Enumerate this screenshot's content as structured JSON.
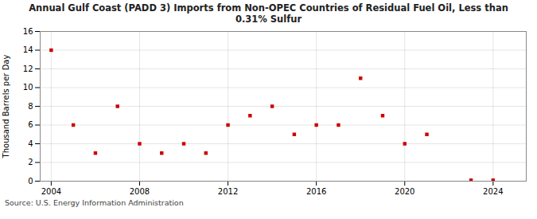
{
  "chart_data": {
    "type": "scatter",
    "title": "Annual Gulf Coast (PADD 3) Imports from Non-OPEC Countries of Residual Fuel Oil, Less than\n0.31% Sulfur",
    "ylabel": "Thousand Barrels per Day",
    "source": "Source: U.S. Energy Information Administration",
    "x": [
      2004,
      2005,
      2006,
      2007,
      2008,
      2009,
      2010,
      2011,
      2012,
      2013,
      2014,
      2015,
      2016,
      2017,
      2018,
      2019,
      2020,
      2021,
      2023,
      2024
    ],
    "values": [
      14.0,
      6.0,
      3.0,
      8.0,
      4.0,
      3.0,
      4.0,
      3.0,
      6.0,
      7.0,
      8.0,
      5.0,
      6.0,
      6.0,
      11.0,
      7.0,
      4.0,
      5.0,
      0.1,
      0.1
    ],
    "color": "#CC0000",
    "marker": "square",
    "xlim": [
      2003.5,
      2025.5
    ],
    "ylim": [
      0,
      16
    ],
    "xticks": [
      2004,
      2008,
      2012,
      2016,
      2020,
      2024
    ],
    "yticks": [
      0,
      2,
      4,
      6,
      8,
      10,
      12,
      14,
      16
    ],
    "grid": true
  }
}
